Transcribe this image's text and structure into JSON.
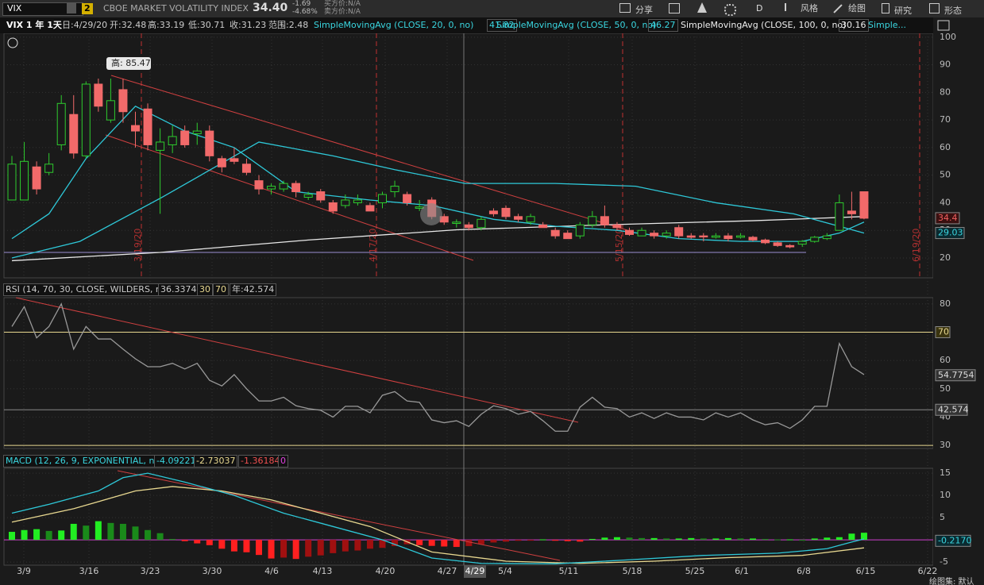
{
  "toolbar": {
    "symbol": "VIX",
    "link": "2",
    "description": "CBOE MARKET VOLATILITY INDEX",
    "last": "34.40",
    "change": "-1.69",
    "change_pct": "-4.68%",
    "bid": "买方价:N/A",
    "ask": "卖方价:N/A",
    "buttons": [
      "分享",
      "D",
      "风格",
      "绘图",
      "研究",
      "形态"
    ]
  },
  "header": {
    "symbol_info": "VIX 1 年 1天",
    "date": "日:4/29/20",
    "open": "开:32.48",
    "high": "高:33.19",
    "low": "低:30.71",
    "close": "收:31.23",
    "range": "范围:2.48",
    "studies": [
      {
        "name": "SimpleMovingAvg (CLOSE, 20, 0, no)",
        "value": "41.82"
      },
      {
        "name": "SimpleMovingAvg (CLOSE, 50, 0, no)",
        "value": "46.27"
      },
      {
        "name": "SimpleMovingAvg (CLOSE, 100, 0, no)",
        "value": "30.16"
      }
    ],
    "more": "Simple..."
  },
  "price_panel": {
    "ylim": [
      12.8,
      101.4
    ],
    "yticks": [
      100,
      90,
      80,
      70,
      60,
      50,
      40,
      30,
      20
    ],
    "tooltip": "高: 85.47",
    "markers": [
      "3/19/20",
      "4/17/20",
      "5/15/20",
      "6/19/20"
    ],
    "last_price": {
      "value": 34.4,
      "label": "34.4"
    },
    "last_sma": {
      "value": 29.03,
      "label": "29.03"
    },
    "support": 22,
    "candles": [
      [
        41,
        57,
        41,
        54
      ],
      [
        41,
        62,
        41,
        55
      ],
      [
        53,
        55,
        43,
        45
      ],
      [
        51,
        58,
        50,
        54
      ],
      [
        61,
        79,
        59,
        76
      ],
      [
        72,
        79,
        56,
        58
      ],
      [
        57,
        84,
        56,
        83
      ],
      [
        83,
        85,
        73,
        75
      ],
      [
        70,
        85,
        69,
        77
      ],
      [
        81,
        85,
        69,
        73
      ],
      [
        68,
        73,
        60,
        66
      ],
      [
        74,
        76,
        59,
        61
      ],
      [
        59,
        67,
        36,
        62
      ],
      [
        61,
        68,
        58,
        64
      ],
      [
        66,
        68,
        60,
        61
      ],
      [
        65,
        69,
        61,
        66
      ],
      [
        66,
        68,
        55,
        57
      ],
      [
        56,
        57,
        51,
        53
      ],
      [
        56,
        60,
        54,
        55
      ],
      [
        54,
        56,
        50,
        51
      ],
      [
        48,
        50,
        43,
        45
      ],
      [
        45,
        47,
        43,
        46
      ],
      [
        45,
        48,
        44,
        47
      ],
      [
        47,
        48,
        42,
        44
      ],
      [
        42,
        44,
        41,
        43
      ],
      [
        44,
        45,
        40,
        41
      ],
      [
        40,
        41,
        36,
        37
      ],
      [
        39,
        43,
        38,
        41
      ],
      [
        40,
        43,
        39,
        41
      ],
      [
        39,
        40,
        37,
        37
      ],
      [
        40,
        44,
        38,
        43
      ],
      [
        44,
        48,
        42,
        46
      ],
      [
        43,
        44,
        39,
        40
      ],
      [
        38,
        41,
        37,
        38.5
      ],
      [
        41,
        42,
        34,
        35
      ],
      [
        35,
        36,
        32,
        33
      ],
      [
        32.5,
        34,
        31,
        33
      ],
      [
        32,
        33,
        30,
        31
      ],
      [
        31,
        35,
        30,
        34
      ],
      [
        37,
        38,
        35,
        36
      ],
      [
        38,
        39,
        34,
        35
      ],
      [
        35,
        36,
        33,
        34
      ],
      [
        33,
        36,
        32,
        35
      ],
      [
        32,
        33,
        31,
        31
      ],
      [
        30,
        31,
        27,
        28
      ],
      [
        29,
        30,
        27,
        27
      ],
      [
        28,
        33,
        27,
        32
      ],
      [
        32,
        37,
        31,
        35
      ],
      [
        35,
        39,
        31,
        32
      ],
      [
        32,
        33,
        30,
        31
      ],
      [
        30,
        31,
        28,
        28.5
      ],
      [
        28,
        31,
        28,
        30
      ],
      [
        29,
        30,
        27,
        28
      ],
      [
        28,
        30,
        27,
        29
      ],
      [
        31,
        32,
        27,
        28
      ],
      [
        28,
        29,
        27,
        27.5
      ],
      [
        28,
        29,
        26,
        27.6
      ],
      [
        27.5,
        29,
        27,
        28
      ],
      [
        28,
        29,
        26,
        27
      ],
      [
        27.5,
        29,
        27,
        28
      ],
      [
        27.5,
        28,
        26,
        26.5
      ],
      [
        26.5,
        27,
        25,
        25.5
      ],
      [
        25.5,
        26,
        24,
        24.5
      ],
      [
        24.5,
        25,
        23.5,
        24
      ],
      [
        25,
        26.5,
        24,
        26
      ],
      [
        26,
        28,
        25.5,
        27.5
      ],
      [
        27,
        29,
        26.5,
        28
      ],
      [
        30,
        43,
        30,
        40
      ],
      [
        37,
        44,
        34,
        36
      ],
      [
        44,
        44,
        34,
        34.4
      ]
    ],
    "sma20": {
      "x": [
        0,
        3,
        6,
        10,
        14,
        18,
        23,
        29,
        34,
        39,
        44,
        49,
        54,
        59,
        64,
        67,
        69
      ],
      "values": [
        27,
        36,
        56,
        75,
        66,
        60,
        44,
        41,
        39,
        34,
        31.5,
        30,
        27,
        26,
        26,
        29,
        33
      ]
    },
    "sma50": {
      "x": [
        0,
        5.5,
        12,
        20,
        26,
        31,
        36.7,
        44,
        50.5,
        57,
        63.3,
        69
      ],
      "values": [
        20,
        26,
        41.6,
        62,
        57,
        52,
        47,
        47,
        46,
        40,
        36,
        29.03
      ]
    },
    "sma100": {
      "x": [
        0,
        12,
        24,
        36,
        48,
        60,
        69
      ],
      "values": [
        19,
        22,
        26.5,
        30.2,
        32,
        33.5,
        35
      ]
    }
  },
  "rsi_panel": {
    "title": "RSI (14, 70, 30, CLOSE, WILDERS, no)",
    "value": "36.3374",
    "low": "30",
    "high": "70",
    "year": "年:42.574",
    "ylim": [
      28.9,
      82.2
    ],
    "yticks": [
      80,
      60,
      50,
      40,
      30
    ],
    "overbought": {
      "value": 70,
      "label": "70"
    },
    "last": {
      "value": 54.7754,
      "label": "54.7754"
    },
    "level": {
      "value": 42.574,
      "label": "42.574"
    },
    "values": [
      72,
      79,
      68,
      72,
      80,
      64,
      72,
      67.6,
      67.6,
      64,
      60.6,
      57.8,
      57.8,
      59,
      57,
      59,
      53,
      51,
      55,
      50,
      45.7,
      45.7,
      47,
      44,
      43,
      42.4,
      40,
      43.8,
      43.8,
      41.5,
      47.7,
      49,
      45.7,
      45.2,
      39,
      38,
      38.7,
      36.7,
      41,
      44,
      43,
      41,
      42,
      38.7,
      35,
      35,
      43.5,
      47,
      43.5,
      43,
      40,
      41.5,
      39.5,
      41.5,
      40,
      40,
      39,
      41.5,
      40,
      41.5,
      39,
      37.3,
      38,
      36,
      39,
      43.8,
      43.8,
      66,
      57.8,
      55
    ]
  },
  "macd_panel": {
    "title": "MACD (12, 26, 9, EXPONENTIAL, no)",
    "value": "-4.09221",
    "avg": "-2.73037",
    "diff": "-1.36184",
    "zero": "0",
    "ylim": [
      -5.7,
      16.1
    ],
    "yticks": [
      15,
      10,
      5,
      -5
    ],
    "last": {
      "value": -0.217,
      "label": "-0.2170"
    },
    "hist": [
      1.8,
      2.2,
      2.4,
      2.0,
      2.1,
      3.6,
      3.2,
      4.2,
      3.8,
      3.6,
      3.0,
      2.2,
      1.5,
      0.2,
      -0.3,
      -0.8,
      -1.2,
      -2.0,
      -2.6,
      -2.8,
      -3.4,
      -4.2,
      -4.0,
      -4.3,
      -3.8,
      -3.5,
      -3.0,
      -2.6,
      -2.4,
      -2.0,
      -1.8,
      -1.4,
      -1.0,
      -1.2,
      -1.36,
      -1.5,
      -1.6,
      -1.4,
      -1.0,
      -0.6,
      -0.4,
      -0.2,
      -0.1,
      0.1,
      -0.2,
      -0.3,
      -0.4,
      0.2,
      0.5,
      0.6,
      0.5,
      0.4,
      0.4,
      0.3,
      0.3,
      0.4,
      0.3,
      0.3,
      0.4,
      0.3,
      0.3,
      0.2,
      0.1,
      0.1,
      0.0,
      0.3,
      0.5,
      0.6,
      1.4,
      1.6
    ],
    "macd": {
      "x": [
        0,
        3,
        7,
        9,
        11,
        14,
        18,
        22,
        26,
        30,
        34,
        38,
        44,
        50,
        56,
        62,
        66,
        68,
        69
      ],
      "values": [
        6,
        8,
        11,
        14,
        15,
        13,
        10,
        6,
        3,
        0,
        -4.09,
        -5.3,
        -5.4,
        -4.5,
        -3.5,
        -3,
        -2,
        -0.5,
        0.2
      ]
    },
    "signal": {
      "x": [
        0,
        5,
        10,
        13,
        17,
        21,
        25,
        29,
        34,
        40,
        46,
        52,
        58,
        64,
        69
      ],
      "values": [
        4,
        7,
        11,
        12,
        11,
        9,
        6,
        3,
        -2.73,
        -4.8,
        -5.3,
        -4.8,
        -4,
        -3.5,
        -1.8
      ]
    }
  },
  "x_axis": {
    "labels": [
      "3/9",
      "3/16",
      "3/23",
      "3/30",
      "4/6",
      "4/13",
      "4/20",
      "4/27",
      "5/4",
      "5/11",
      "5/18",
      "5/25",
      "6/1",
      "6/8",
      "6/15",
      "6/22"
    ],
    "cursor": "4/29"
  },
  "footer": "绘图集: 默认"
}
